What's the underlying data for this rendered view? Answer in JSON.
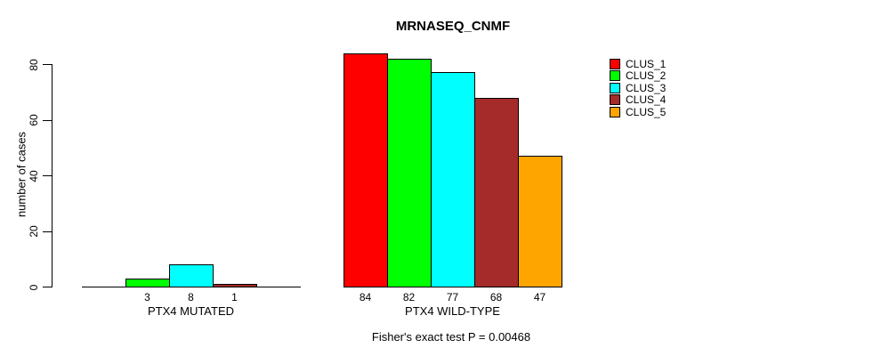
{
  "chart_data": {
    "type": "bar",
    "title": "MRNASEQ_CNMF",
    "xlabel": "",
    "ylabel": "number of cases",
    "ylim": [
      0,
      80
    ],
    "yticks": [
      0,
      20,
      40,
      60,
      80
    ],
    "grid": false,
    "legend_position": "right",
    "categories": [
      "PTX4 MUTATED",
      "PTX4 WILD-TYPE"
    ],
    "series": [
      {
        "name": "CLUS_1",
        "color": "#FF0000",
        "values": [
          0,
          84
        ]
      },
      {
        "name": "CLUS_2",
        "color": "#00FF00",
        "values": [
          3,
          82
        ]
      },
      {
        "name": "CLUS_3",
        "color": "#00FFFF",
        "values": [
          8,
          77
        ]
      },
      {
        "name": "CLUS_4",
        "color": "#A52A2A",
        "values": [
          1,
          68
        ]
      },
      {
        "name": "CLUS_5",
        "color": "#FFA500",
        "values": [
          0,
          47
        ]
      }
    ],
    "annotation": "Fisher's exact test P = 0.00468"
  }
}
